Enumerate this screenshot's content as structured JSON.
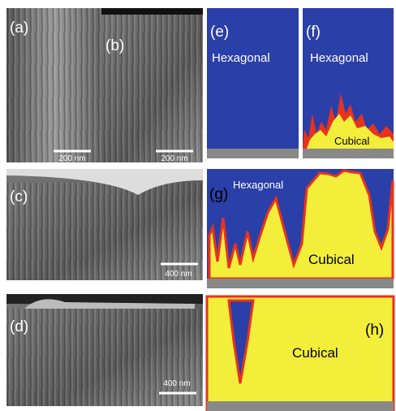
{
  "panels": [
    {
      "label": "(a)",
      "scale_bar": "200 nm"
    },
    {
      "label": "(b)",
      "scale_bar": "200 nm"
    },
    {
      "label": "(c)",
      "scale_bar": "400 nm"
    },
    {
      "label": "(d)",
      "scale_bar": "400 nm"
    },
    {
      "label": "(e)",
      "phase": "Hexagonal"
    },
    {
      "label": "(f)",
      "phases": [
        "Hexagonal",
        "Cubical"
      ]
    },
    {
      "label": "(g)",
      "phases": [
        "Hexagonal",
        "Cubical"
      ]
    },
    {
      "label": "(h)",
      "phase": "Cubical"
    }
  ]
}
